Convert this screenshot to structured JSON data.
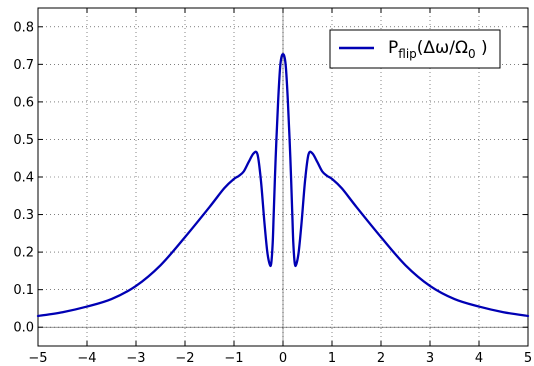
{
  "chart_data": {
    "type": "line",
    "xlim": [
      -5,
      5
    ],
    "ylim": [
      -0.05,
      0.85
    ],
    "xticks": [
      -5,
      -4,
      -3,
      -2,
      -1,
      0,
      1,
      2,
      3,
      4,
      5
    ],
    "xtick_labels": [
      "−5",
      "−4",
      "−3",
      "−2",
      "−1",
      "0",
      "1",
      "2",
      "3",
      "4",
      "5"
    ],
    "yticks": [
      0.0,
      0.1,
      0.2,
      0.3,
      0.4,
      0.5,
      0.6,
      0.7,
      0.8
    ],
    "ytick_labels": [
      "0.0",
      "0.1",
      "0.2",
      "0.3",
      "0.4",
      "0.5",
      "0.6",
      "0.7",
      "0.8"
    ],
    "grid": true,
    "zero_lines": true,
    "legend_position": "top-right",
    "legend": {
      "prefix": "P",
      "subscript": "flip",
      "argument_open": "(Δω/Ω",
      "argument_sub": "0",
      "argument_close": " )"
    },
    "series": [
      {
        "color": "#0000b4",
        "x": [
          -5.0,
          -4.5,
          -4.0,
          -3.5,
          -3.0,
          -2.5,
          -2.0,
          -1.5,
          -1.2,
          -1.0,
          -0.9,
          -0.8,
          -0.7,
          -0.6,
          -0.52,
          -0.45,
          -0.38,
          -0.32,
          -0.27,
          -0.24,
          -0.21,
          -0.19,
          -0.15,
          -0.1,
          -0.06,
          -0.03,
          0.0,
          0.03,
          0.06,
          0.1,
          0.15,
          0.19,
          0.21,
          0.24,
          0.27,
          0.32,
          0.38,
          0.45,
          0.52,
          0.6,
          0.7,
          0.8,
          0.9,
          1.0,
          1.2,
          1.5,
          2.0,
          2.5,
          3.0,
          3.5,
          4.0,
          4.5,
          5.0
        ],
        "y": [
          0.03,
          0.04,
          0.055,
          0.075,
          0.11,
          0.165,
          0.24,
          0.32,
          0.37,
          0.395,
          0.403,
          0.415,
          0.44,
          0.463,
          0.46,
          0.39,
          0.28,
          0.2,
          0.167,
          0.17,
          0.225,
          0.3,
          0.45,
          0.6,
          0.69,
          0.72,
          0.727,
          0.72,
          0.69,
          0.6,
          0.45,
          0.3,
          0.225,
          0.17,
          0.167,
          0.2,
          0.28,
          0.39,
          0.46,
          0.463,
          0.44,
          0.415,
          0.403,
          0.395,
          0.37,
          0.32,
          0.24,
          0.165,
          0.11,
          0.075,
          0.055,
          0.04,
          0.03
        ]
      }
    ]
  }
}
